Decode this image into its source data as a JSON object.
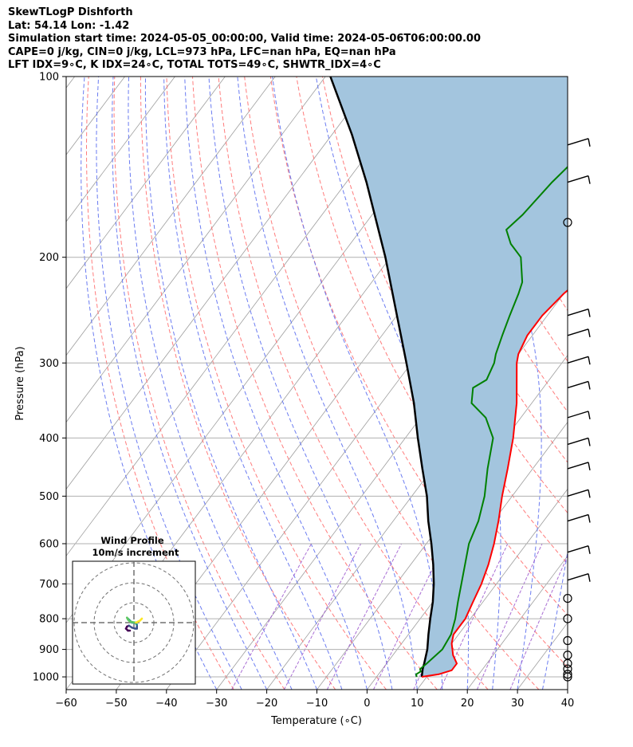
{
  "header": {
    "line1": "SkewTLogP Dishforth",
    "line2": "Lat: 54.14   Lon: -1.42",
    "line3": "Simulation start time: 2024-05-05_00:00:00, Valid time: 2024-05-06T06:00:00.00",
    "line4": "CAPE=0 j/kg, CIN=0 j/kg, LCL=973 hPa, LFC=nan hPa, EQ=nan hPa",
    "line5": "LFT IDX=9∘C, K IDX=24∘C, TOTAL TOTS=49∘C, SHWTR_IDX=4∘C"
  },
  "chart_data": {
    "type": "line",
    "subtype": "skew-T log-P diagram",
    "xlabel": "Temperature (∘C)",
    "ylabel": "Pressure (hPa)",
    "xlim": [
      -60,
      40
    ],
    "ylim": [
      1050,
      100
    ],
    "y_scale": "log",
    "x_ticks": [
      -60,
      -50,
      -40,
      -30,
      -20,
      -10,
      0,
      10,
      20,
      30,
      40
    ],
    "y_ticks": [
      1000,
      900,
      800,
      700,
      600,
      500,
      400,
      300,
      200,
      100
    ],
    "grid": true,
    "colors": {
      "temperature": "#ff0000",
      "dewpoint": "#008000",
      "parcel": "#000000",
      "fill": "#a3c5de",
      "dry_adiabat": "#ff6e6e",
      "moist_adiabat": "#5b6ef0",
      "mixing_ratio": "#9a55cc",
      "isotherm": "#9e9e9e"
    },
    "series": [
      {
        "name": "temperature",
        "points": [
          [
            1000,
            9
          ],
          [
            990,
            12
          ],
          [
            975,
            14
          ],
          [
            950,
            14
          ],
          [
            920,
            12
          ],
          [
            880,
            10
          ],
          [
            850,
            9
          ],
          [
            800,
            9
          ],
          [
            750,
            8
          ],
          [
            700,
            7
          ],
          [
            650,
            5.5
          ],
          [
            600,
            3.5
          ],
          [
            550,
            1
          ],
          [
            500,
            -2
          ],
          [
            450,
            -5
          ],
          [
            400,
            -8.5
          ],
          [
            350,
            -13
          ],
          [
            300,
            -19
          ],
          [
            290,
            -20
          ],
          [
            270,
            -21
          ],
          [
            250,
            -21
          ],
          [
            230,
            -20
          ],
          [
            210,
            -18
          ],
          [
            200,
            -16
          ],
          [
            190,
            -11.5
          ],
          [
            170,
            -6.5
          ],
          [
            150,
            -3
          ],
          [
            140,
            -1
          ],
          [
            125,
            3
          ],
          [
            110,
            6
          ],
          [
            100,
            8
          ]
        ]
      },
      {
        "name": "dewpoint",
        "points": [
          [
            1000,
            8
          ],
          [
            990,
            7.5
          ],
          [
            980,
            8
          ],
          [
            970,
            7.5
          ],
          [
            950,
            8
          ],
          [
            900,
            9
          ],
          [
            850,
            8.5
          ],
          [
            800,
            7
          ],
          [
            750,
            5
          ],
          [
            700,
            3
          ],
          [
            600,
            -1.5
          ],
          [
            550,
            -3
          ],
          [
            500,
            -5.5
          ],
          [
            450,
            -9
          ],
          [
            400,
            -12.5
          ],
          [
            370,
            -17
          ],
          [
            350,
            -22
          ],
          [
            330,
            -24
          ],
          [
            320,
            -22.5
          ],
          [
            300,
            -23.5
          ],
          [
            290,
            -24.5
          ],
          [
            270,
            -26
          ],
          [
            250,
            -27.5
          ],
          [
            230,
            -29
          ],
          [
            220,
            -30
          ],
          [
            200,
            -34
          ],
          [
            190,
            -38
          ],
          [
            180,
            -41
          ],
          [
            170,
            -40
          ],
          [
            150,
            -39
          ],
          [
            130,
            -37
          ],
          [
            110,
            -35
          ],
          [
            100,
            -33
          ]
        ]
      },
      {
        "name": "parcel",
        "points": [
          [
            1000,
            9
          ],
          [
            970,
            8
          ],
          [
            950,
            7.5
          ],
          [
            900,
            6
          ],
          [
            850,
            4
          ],
          [
            800,
            2
          ],
          [
            750,
            0
          ],
          [
            700,
            -2.5
          ],
          [
            650,
            -5.5
          ],
          [
            600,
            -9
          ],
          [
            550,
            -13
          ],
          [
            500,
            -17
          ],
          [
            450,
            -22
          ],
          [
            400,
            -27.5
          ],
          [
            350,
            -33.5
          ],
          [
            300,
            -41
          ],
          [
            250,
            -50
          ],
          [
            200,
            -61
          ],
          [
            150,
            -76
          ],
          [
            125,
            -86
          ],
          [
            100,
            -99
          ]
        ]
      }
    ],
    "wind_barbs_pressure": [
      130,
      150,
      175,
      250,
      270,
      300,
      330,
      370,
      410,
      450,
      500,
      550,
      620,
      690,
      740,
      800,
      870,
      920,
      950,
      970,
      990,
      1000
    ],
    "inset": {
      "title_line1": "Wind Profile",
      "title_line2": "10m/s increment",
      "rings_ms": [
        10,
        20,
        30
      ],
      "hodograph_uv": [
        [
          -2,
          -4
        ],
        [
          -3,
          -4
        ],
        [
          -4,
          -3
        ],
        [
          -3.5,
          -2
        ],
        [
          -2.5,
          -1.5
        ],
        [
          -1,
          -2.5
        ],
        [
          0.5,
          -3
        ],
        [
          1.5,
          -3
        ],
        [
          1.5,
          -1
        ],
        [
          0.5,
          0
        ],
        [
          -1,
          0
        ],
        [
          -2,
          1
        ],
        [
          -3,
          2
        ],
        [
          -3.5,
          2.5
        ],
        [
          -3,
          1.5
        ],
        [
          -2,
          0.5
        ],
        [
          1,
          0
        ],
        [
          2,
          0.5
        ],
        [
          3,
          1
        ],
        [
          4,
          2
        ],
        [
          3.5,
          1.5
        ]
      ]
    }
  }
}
